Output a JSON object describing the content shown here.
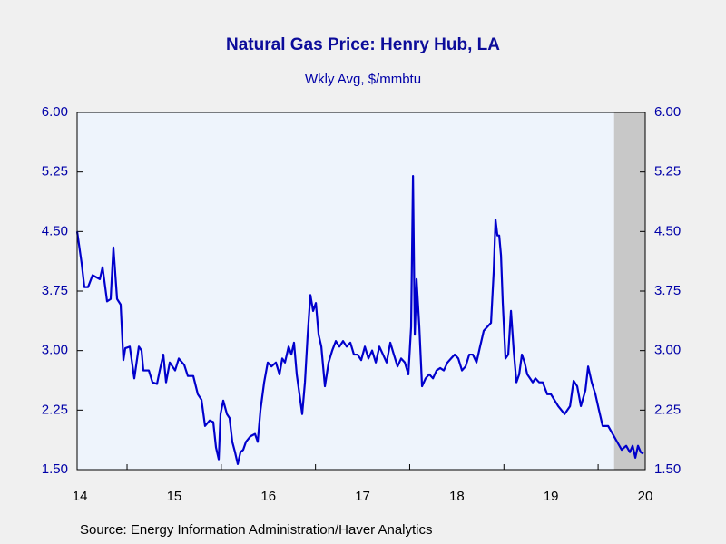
{
  "chart_data": {
    "type": "line",
    "title": "Natural Gas Price: Henry Hub, LA",
    "subtitle": "Wkly Avg, $/mmbtu",
    "source": "Source:  Energy Information Administration/Haver Analytics",
    "color": "#0000cc",
    "shade_color": "#c8c8c8",
    "shaded_region": [
      2020.17,
      2020.5
    ],
    "xlim": [
      2014.47,
      2020.5
    ],
    "xticks": [
      {
        "value": 2014.5,
        "label": "14"
      },
      {
        "value": 2015.5,
        "label": "15"
      },
      {
        "value": 2016.5,
        "label": "16"
      },
      {
        "value": 2017.5,
        "label": "17"
      },
      {
        "value": 2018.5,
        "label": "18"
      },
      {
        "value": 2019.5,
        "label": "19"
      },
      {
        "value": 2020.5,
        "label": "20"
      }
    ],
    "year_boundaries": [
      2015,
      2016,
      2017,
      2018,
      2019,
      2020
    ],
    "ylim": [
      1.5,
      6
    ],
    "yticks": [
      {
        "value": 1.5,
        "label": "1.50"
      },
      {
        "value": 2.25,
        "label": "2.25"
      },
      {
        "value": 3,
        "label": "3.00"
      },
      {
        "value": 3.75,
        "label": "3.75"
      },
      {
        "value": 4.5,
        "label": "4.50"
      },
      {
        "value": 5.25,
        "label": "5.25"
      },
      {
        "value": 6,
        "label": "6.00"
      }
    ],
    "x": [
      2014.47,
      2014.518,
      2014.547,
      2014.586,
      2014.634,
      2014.711,
      2014.74,
      2014.788,
      2014.826,
      2014.855,
      2014.894,
      2014.932,
      2014.961,
      2014.981,
      2015.029,
      2015.077,
      2015.125,
      2015.154,
      2015.173,
      2015.231,
      2015.27,
      2015.318,
      2015.347,
      2015.385,
      2015.414,
      2015.453,
      2015.51,
      2015.549,
      2015.607,
      2015.645,
      2015.703,
      2015.751,
      2015.79,
      2015.828,
      2015.877,
      2015.915,
      2015.944,
      2015.973,
      2015.992,
      2016.021,
      2016.06,
      2016.088,
      2016.117,
      2016.146,
      2016.175,
      2016.204,
      2016.233,
      2016.262,
      2016.31,
      2016.358,
      2016.387,
      2016.416,
      2016.455,
      2016.493,
      2016.532,
      2016.58,
      2016.618,
      2016.647,
      2016.676,
      2016.715,
      2016.744,
      2016.772,
      2016.801,
      2016.83,
      2016.859,
      2016.888,
      2016.917,
      2016.946,
      2016.975,
      2017.004,
      2017.033,
      2017.062,
      2017.1,
      2017.139,
      2017.177,
      2017.216,
      2017.254,
      2017.293,
      2017.331,
      2017.37,
      2017.408,
      2017.447,
      2017.485,
      2017.524,
      2017.562,
      2017.601,
      2017.64,
      2017.678,
      2017.717,
      2017.755,
      2017.794,
      2017.832,
      2017.871,
      2017.909,
      2017.948,
      2017.986,
      2018.015,
      2018.035,
      2018.054,
      2018.073,
      2018.102,
      2018.131,
      2018.169,
      2018.208,
      2018.247,
      2018.285,
      2018.324,
      2018.362,
      2018.401,
      2018.439,
      2018.478,
      2018.516,
      2018.555,
      2018.593,
      2018.632,
      2018.67,
      2018.709,
      2018.747,
      2018.786,
      2018.825,
      2018.863,
      2018.892,
      2018.911,
      2018.931,
      2018.95,
      2018.969,
      2018.988,
      2019.017,
      2019.046,
      2019.075,
      2019.104,
      2019.133,
      2019.162,
      2019.191,
      2019.22,
      2019.248,
      2019.277,
      2019.306,
      2019.335,
      2019.374,
      2019.412,
      2019.46,
      2019.499,
      2019.576,
      2019.644,
      2019.702,
      2019.74,
      2019.778,
      2019.817,
      2019.865,
      2019.894,
      2019.932,
      2019.971,
      2020.009,
      2020.048,
      2020.106,
      2020.154,
      2020.202,
      2020.25,
      2020.298,
      2020.337,
      2020.366,
      2020.395,
      2020.423,
      2020.452,
      2020.481
    ],
    "values": [
      4.5,
      4.1,
      3.8,
      3.8,
      3.95,
      3.9,
      4.05,
      3.62,
      3.65,
      4.3,
      3.65,
      3.58,
      2.88,
      3.03,
      3.05,
      2.65,
      3.05,
      3.0,
      2.75,
      2.75,
      2.6,
      2.58,
      2.75,
      2.95,
      2.6,
      2.85,
      2.75,
      2.9,
      2.82,
      2.68,
      2.68,
      2.45,
      2.38,
      2.05,
      2.12,
      2.1,
      1.78,
      1.63,
      2.2,
      2.37,
      2.2,
      2.15,
      1.85,
      1.72,
      1.57,
      1.72,
      1.75,
      1.85,
      1.92,
      1.95,
      1.85,
      2.25,
      2.6,
      2.85,
      2.8,
      2.85,
      2.7,
      2.9,
      2.85,
      3.05,
      2.95,
      3.1,
      2.7,
      2.45,
      2.2,
      2.6,
      3.2,
      3.7,
      3.5,
      3.6,
      3.2,
      3.05,
      2.55,
      2.85,
      3.0,
      3.12,
      3.05,
      3.12,
      3.05,
      3.1,
      2.95,
      2.95,
      2.88,
      3.05,
      2.9,
      3.0,
      2.85,
      3.05,
      2.95,
      2.85,
      3.1,
      2.95,
      2.8,
      2.9,
      2.85,
      2.7,
      3.3,
      5.2,
      3.2,
      3.9,
      3.3,
      2.55,
      2.65,
      2.7,
      2.65,
      2.75,
      2.78,
      2.75,
      2.85,
      2.9,
      2.95,
      2.9,
      2.75,
      2.8,
      2.95,
      2.95,
      2.85,
      3.05,
      3.25,
      3.3,
      3.35,
      4.0,
      4.65,
      4.45,
      4.45,
      4.2,
      3.6,
      2.9,
      2.95,
      3.5,
      3.0,
      2.6,
      2.7,
      2.95,
      2.85,
      2.7,
      2.65,
      2.6,
      2.65,
      2.6,
      2.6,
      2.45,
      2.45,
      2.3,
      2.2,
      2.3,
      2.62,
      2.55,
      2.3,
      2.5,
      2.8,
      2.6,
      2.45,
      2.25,
      2.05,
      2.05,
      1.95,
      1.85,
      1.75,
      1.8,
      1.72,
      1.8,
      1.65,
      1.8,
      1.72,
      1.7
    ]
  }
}
